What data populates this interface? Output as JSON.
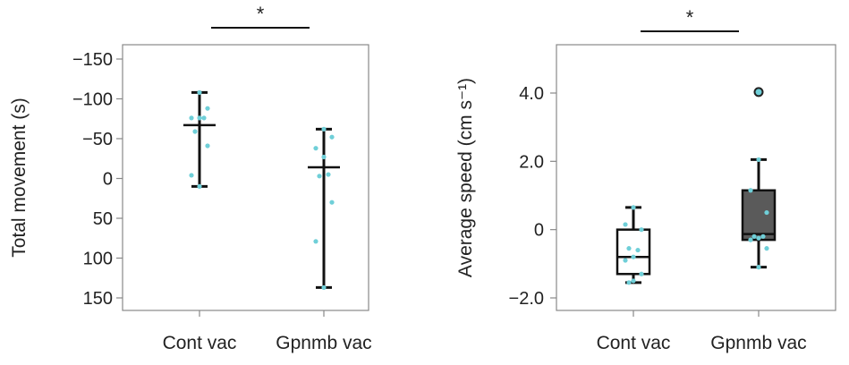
{
  "chart_data": [
    {
      "type": "box",
      "ylabel": "Total movement (s)",
      "ylim": [
        -165,
        165
      ],
      "yticks": [
        150,
        100,
        50,
        0,
        -50,
        -100,
        -150
      ],
      "ytick_labels": [
        "150",
        "100",
        "50",
        "0",
        "−50",
        "−100",
        "−150"
      ],
      "categories": [
        "Cont vac",
        "Gpnmb vac"
      ],
      "significance": "*",
      "groups": [
        {
          "name": "Cont vac",
          "fill": "#ffffff",
          "whisker_low": -108,
          "q1": -80,
          "median": -67,
          "q3": -3,
          "whisker_high": 10,
          "outliers": [],
          "points": [
            10,
            -4,
            -41,
            -59,
            -76,
            -76,
            -76,
            -88,
            -108
          ]
        },
        {
          "name": "Gpnmb vac",
          "fill": "#5a5a5a",
          "whisker_low": -62,
          "q1": -43,
          "median": -14,
          "q3": 30,
          "whisker_high": 137,
          "outliers": [],
          "points": [
            137,
            79,
            30,
            -3,
            -5,
            -27,
            -38,
            -52,
            -62
          ]
        }
      ]
    },
    {
      "type": "box",
      "ylabel": "Average speed (cm s⁻¹)",
      "ylim": [
        -2.4,
        5.4
      ],
      "yticks": [
        4,
        2,
        0,
        -2
      ],
      "ytick_labels": [
        "4.0",
        "2.0",
        "0",
        "−2.0"
      ],
      "categories": [
        "Cont vac",
        "Gpnmb vac"
      ],
      "significance": "*",
      "groups": [
        {
          "name": "Cont vac",
          "fill": "#ffffff",
          "whisker_low": -1.55,
          "q1": -1.3,
          "median": -0.8,
          "q3": 0,
          "whisker_high": 0.65,
          "outliers": [],
          "points": [
            0.65,
            0.15,
            0,
            -0.55,
            -0.6,
            -0.8,
            -0.9,
            -1.3,
            -1.5,
            -1.55
          ]
        },
        {
          "name": "Gpnmb vac",
          "fill": "#5a5a5a",
          "whisker_low": -1.1,
          "q1": -0.3,
          "median": -0.13,
          "q3": 1.15,
          "whisker_high": 2.05,
          "outliers": [
            4.03
          ],
          "points": [
            2.05,
            1.15,
            0.5,
            -0.2,
            -0.2,
            -0.25,
            -0.3,
            -0.55,
            -1.1
          ]
        }
      ]
    }
  ],
  "colors": {
    "point": "#6fcfd8",
    "axis": "#888888",
    "box_line": "#111111"
  }
}
